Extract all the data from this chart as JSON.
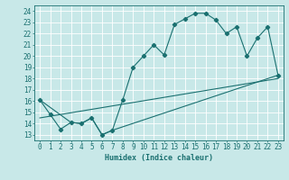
{
  "xlabel": "Humidex (Indice chaleur)",
  "xlim": [
    -0.5,
    23.5
  ],
  "ylim": [
    12.5,
    24.5
  ],
  "xticks": [
    0,
    1,
    2,
    3,
    4,
    5,
    6,
    7,
    8,
    9,
    10,
    11,
    12,
    13,
    14,
    15,
    16,
    17,
    18,
    19,
    20,
    21,
    22,
    23
  ],
  "yticks": [
    13,
    14,
    15,
    16,
    17,
    18,
    19,
    20,
    21,
    22,
    23,
    24
  ],
  "bg_color": "#c8e8e8",
  "line_color": "#1a7070",
  "grid_color": "#ffffff",
  "line1_x": [
    0,
    1,
    2,
    3,
    4,
    5,
    6,
    7,
    8,
    9,
    10,
    11,
    12,
    13,
    14,
    15,
    16,
    17,
    18,
    19,
    20,
    21,
    22,
    23
  ],
  "line1_y": [
    16.1,
    14.8,
    13.5,
    14.1,
    14.0,
    14.5,
    13.0,
    13.4,
    16.1,
    19.0,
    20.0,
    21.0,
    20.1,
    22.8,
    23.3,
    23.8,
    23.8,
    23.2,
    22.0,
    22.6,
    20.0,
    21.6,
    22.6,
    18.3
  ],
  "line2_x": [
    0,
    3,
    4,
    5,
    6,
    7,
    23
  ],
  "line2_y": [
    16.1,
    14.1,
    14.0,
    14.5,
    13.0,
    13.4,
    18.3
  ],
  "line3_x": [
    0,
    23
  ],
  "line3_y": [
    14.5,
    18.0
  ],
  "font_size": 5.5,
  "xlabel_font_size": 6.0
}
